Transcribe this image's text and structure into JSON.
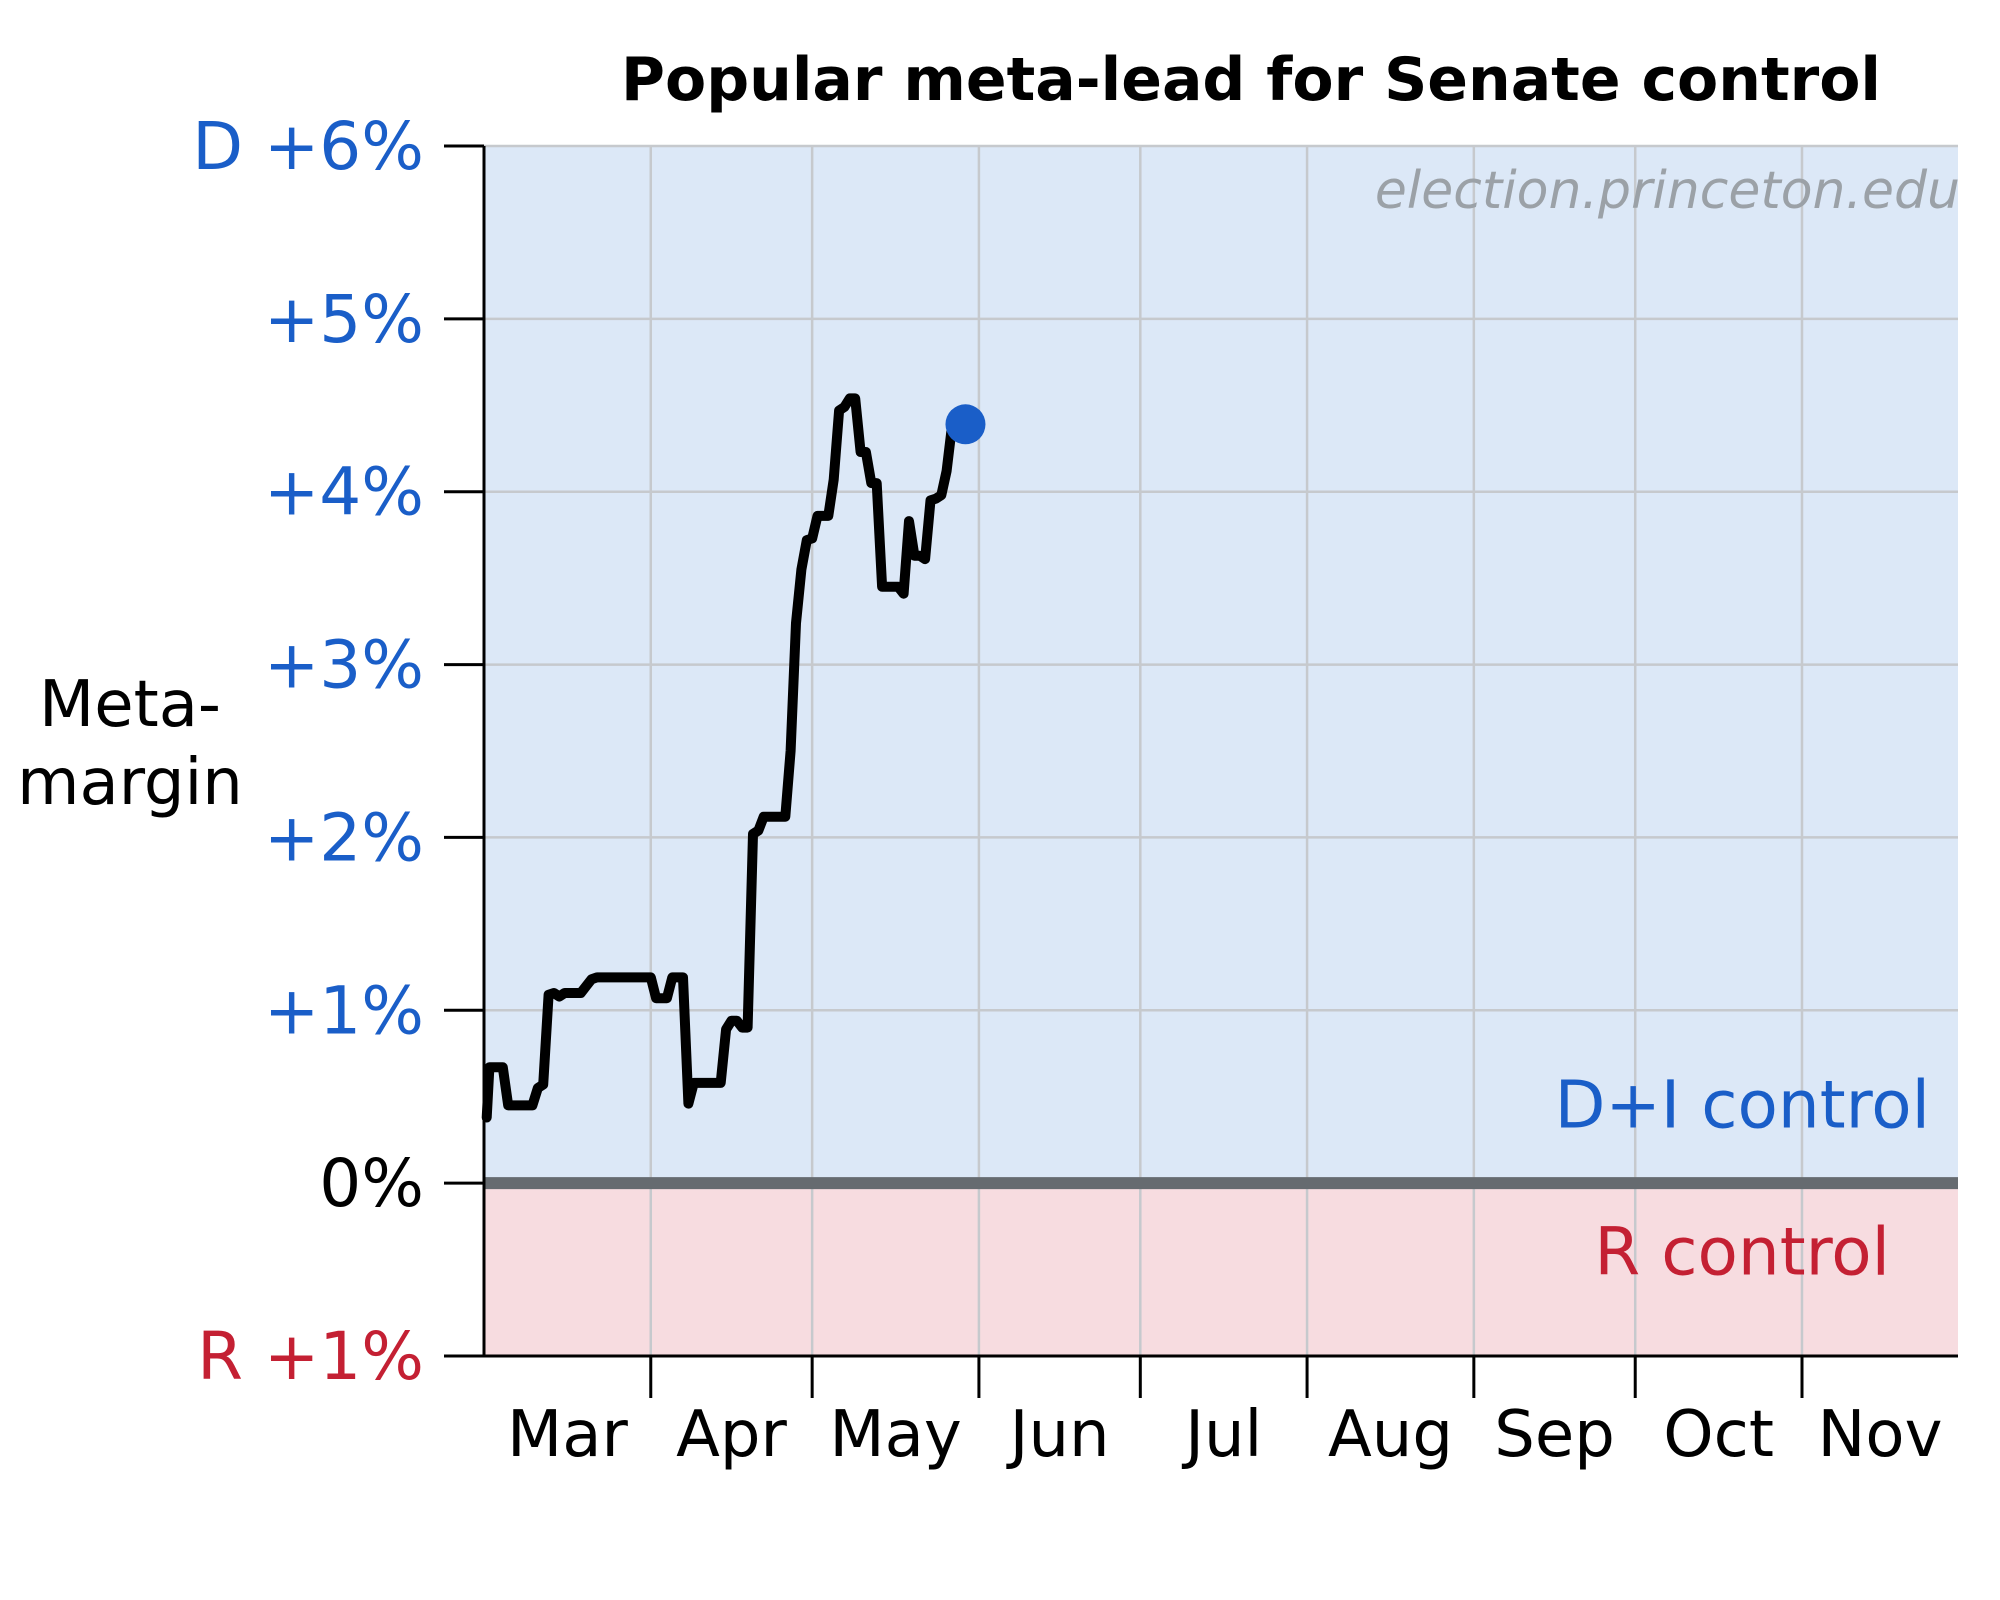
{
  "chart_data": {
    "type": "line",
    "title": "Popular meta-lead for Senate control",
    "ylabel_lines": [
      "Meta-",
      "margin"
    ],
    "watermark": "election.princeton.edu",
    "ylim": [
      -1,
      6
    ],
    "xlim": [
      0,
      274
    ],
    "months": [
      {
        "label": "Mar",
        "start": 0,
        "end": 31
      },
      {
        "label": "Apr",
        "start": 31,
        "end": 61
      },
      {
        "label": "May",
        "start": 61,
        "end": 92
      },
      {
        "label": "Jun",
        "start": 92,
        "end": 122
      },
      {
        "label": "Jul",
        "start": 122,
        "end": 153
      },
      {
        "label": "Aug",
        "start": 153,
        "end": 184
      },
      {
        "label": "Sep",
        "start": 184,
        "end": 214
      },
      {
        "label": "Oct",
        "start": 214,
        "end": 245
      },
      {
        "label": "Nov",
        "start": 245,
        "end": 274
      }
    ],
    "y_ticks": [
      {
        "value": 6,
        "label": "D +6%",
        "color": "#1a5ec8"
      },
      {
        "value": 5,
        "label": "+5%",
        "color": "#1a5ec8"
      },
      {
        "value": 4,
        "label": "+4%",
        "color": "#1a5ec8"
      },
      {
        "value": 3,
        "label": "+3%",
        "color": "#1a5ec8"
      },
      {
        "value": 2,
        "label": "+2%",
        "color": "#1a5ec8"
      },
      {
        "value": 1,
        "label": "+1%",
        "color": "#1a5ec8"
      },
      {
        "value": 0,
        "label": "0%",
        "color": "#000000"
      },
      {
        "value": -1,
        "label": "R +1%",
        "color": "#c42033"
      }
    ],
    "regions": [
      {
        "label": "D+I control",
        "from": 0,
        "to": 6,
        "fill": "#dce8f7",
        "text_color": "#1a5ec8",
        "label_y": 0.45
      },
      {
        "label": "R control",
        "from": -1,
        "to": 0,
        "fill": "#f7dce0",
        "text_color": "#c42033",
        "label_y": -0.4
      }
    ],
    "zero_line_color": "#666b70",
    "grid": true,
    "series": [
      {
        "line_color": "#000000",
        "marker_color": "#1a5ec8",
        "points": [
          [
            0.5,
            0.38
          ],
          [
            1,
            0.67
          ],
          [
            3.5,
            0.67
          ],
          [
            4.5,
            0.45
          ],
          [
            7,
            0.45
          ],
          [
            8,
            0.45
          ],
          [
            9,
            0.45
          ],
          [
            10,
            0.55
          ],
          [
            11,
            0.57
          ],
          [
            12,
            1.09
          ],
          [
            13,
            1.1
          ],
          [
            14,
            1.08
          ],
          [
            15,
            1.1
          ],
          [
            16,
            1.1
          ],
          [
            17,
            1.1
          ],
          [
            18,
            1.1
          ],
          [
            19,
            1.14
          ],
          [
            20,
            1.18
          ],
          [
            21,
            1.19
          ],
          [
            22,
            1.19
          ],
          [
            23,
            1.19
          ],
          [
            24,
            1.19
          ],
          [
            25,
            1.19
          ],
          [
            26,
            1.19
          ],
          [
            27,
            1.19
          ],
          [
            28,
            1.19
          ],
          [
            29,
            1.19
          ],
          [
            30,
            1.19
          ],
          [
            31,
            1.19
          ],
          [
            32,
            1.07
          ],
          [
            33,
            1.07
          ],
          [
            34,
            1.07
          ],
          [
            35,
            1.19
          ],
          [
            36,
            1.19
          ],
          [
            37,
            1.19
          ],
          [
            38,
            0.46
          ],
          [
            39,
            0.58
          ],
          [
            40,
            0.58
          ],
          [
            41,
            0.58
          ],
          [
            42,
            0.58
          ],
          [
            43,
            0.58
          ],
          [
            44,
            0.58
          ],
          [
            45,
            0.89
          ],
          [
            46,
            0.94
          ],
          [
            47,
            0.94
          ],
          [
            48,
            0.9
          ],
          [
            49,
            0.9
          ],
          [
            50,
            2.02
          ],
          [
            51,
            2.04
          ],
          [
            52,
            2.12
          ],
          [
            53,
            2.12
          ],
          [
            54,
            2.12
          ],
          [
            55,
            2.12
          ],
          [
            56,
            2.12
          ],
          [
            57,
            2.5
          ],
          [
            58,
            3.24
          ],
          [
            59,
            3.55
          ],
          [
            60,
            3.72
          ],
          [
            61,
            3.73
          ],
          [
            62,
            3.86
          ],
          [
            63,
            3.86
          ],
          [
            64,
            3.86
          ],
          [
            65,
            4.07
          ],
          [
            66,
            4.47
          ],
          [
            67,
            4.49
          ],
          [
            68,
            4.54
          ],
          [
            69,
            4.54
          ],
          [
            70,
            4.23
          ],
          [
            71,
            4.23
          ],
          [
            72,
            4.05
          ],
          [
            73,
            4.05
          ],
          [
            74,
            3.45
          ],
          [
            75,
            3.45
          ],
          [
            76,
            3.45
          ],
          [
            77,
            3.45
          ],
          [
            78,
            3.41
          ],
          [
            79,
            3.83
          ],
          [
            80,
            3.63
          ],
          [
            81,
            3.63
          ],
          [
            82,
            3.61
          ],
          [
            83,
            3.95
          ],
          [
            84,
            3.96
          ],
          [
            85,
            3.98
          ],
          [
            86,
            4.12
          ],
          [
            87,
            4.38
          ],
          [
            88,
            4.39
          ],
          [
            89.5,
            4.39
          ]
        ]
      }
    ]
  }
}
